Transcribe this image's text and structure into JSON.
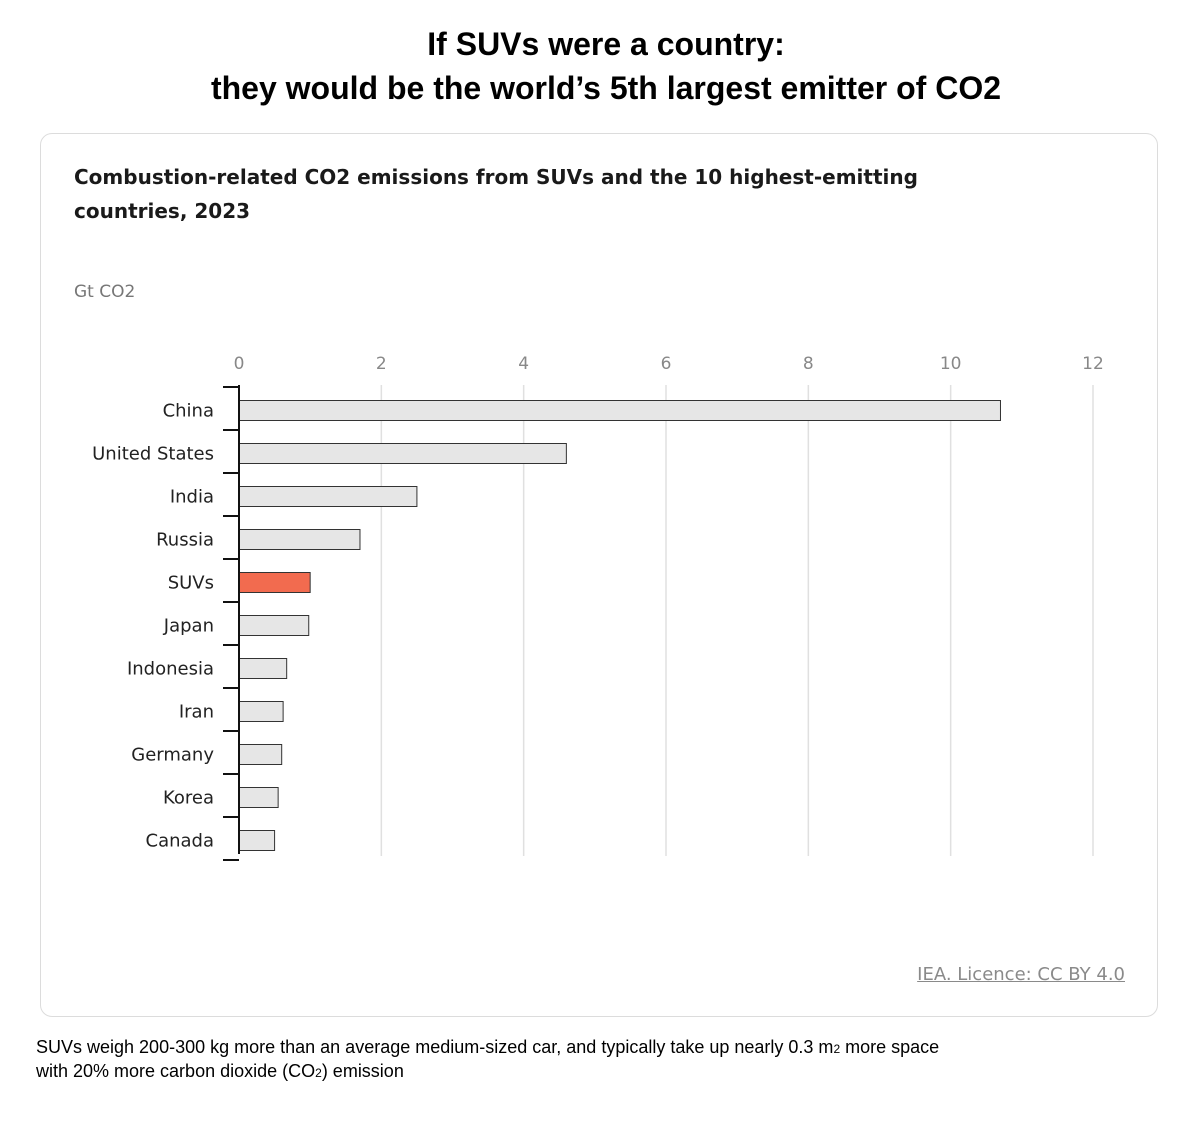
{
  "headline": {
    "line1": "If SUVs were a country:",
    "line2": "they would be the world’s 5th largest emitter of CO2"
  },
  "source": "IEA. Licence: CC BY 4.0",
  "footnote": {
    "part1": "SUVs weigh 200-300 kg more than an average medium-sized car, and typically take up nearly 0.3 m",
    "sub1": "2",
    "part2": " more space",
    "part3": "with 20% more carbon dioxide (CO",
    "sub2": "2",
    "part4": ") emission"
  },
  "colors": {
    "bar_default": "#e6e6e6",
    "bar_highlight": "#f26b4f",
    "bar_stroke": "#333333",
    "grid": "#e0e0e0"
  },
  "chart_data": {
    "type": "bar",
    "orientation": "horizontal",
    "title": "Combustion-related CO2 emissions from SUVs and the 10 highest-emitting countries, 2023",
    "unit_label": "Gt CO2",
    "xlim": [
      0,
      12
    ],
    "ticks": [
      0,
      2,
      4,
      6,
      8,
      10,
      12
    ],
    "categories": [
      "China",
      "United States",
      "India",
      "Russia",
      "SUVs",
      "Japan",
      "Indonesia",
      "Iran",
      "Germany",
      "Korea",
      "Canada"
    ],
    "values": [
      10.7,
      4.6,
      2.5,
      1.7,
      1.0,
      0.98,
      0.67,
      0.62,
      0.6,
      0.55,
      0.5
    ],
    "highlight": "SUVs",
    "grid": true
  }
}
